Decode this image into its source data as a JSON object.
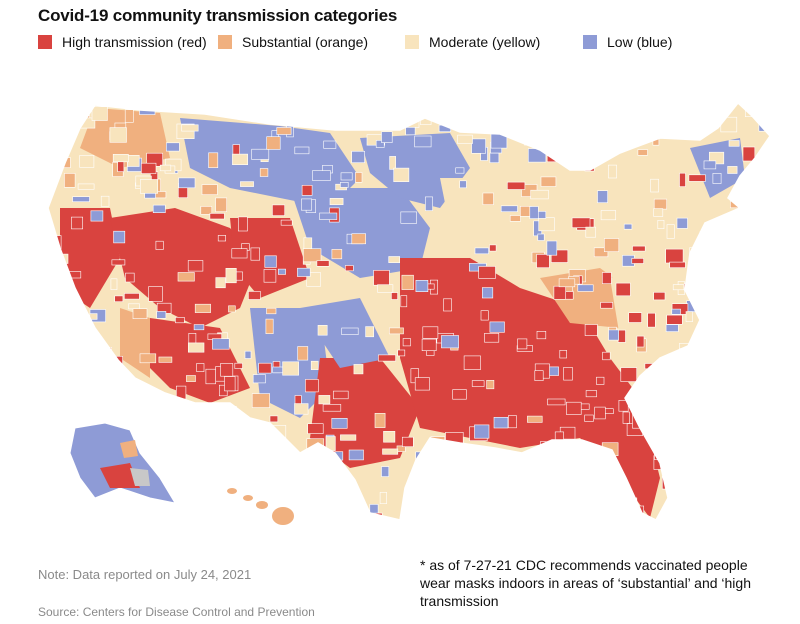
{
  "title": "Covid-19 community transmission categories",
  "legend": [
    {
      "label": "High transmission (red)",
      "color": "#d9433f"
    },
    {
      "label": "Substantial (orange)",
      "color": "#f0b07f"
    },
    {
      "label": "Moderate (yellow)",
      "color": "#f8e4bd"
    },
    {
      "label": "Low (blue)",
      "color": "#8e9bd6"
    }
  ],
  "map": {
    "regions": [
      "contiguous-us",
      "alaska",
      "hawaii"
    ],
    "border_color": "#ffffff",
    "no_data_color": "#c8c8c8"
  },
  "note": "Note: Data reported on July 24, 2021",
  "source": "Source: Centers for Disease Control and Prevention",
  "footnote": "* as of 7-27-21 CDC recommends vaccinated people wear masks indoors in areas of ‘substantial’ and ‘high transmission"
}
